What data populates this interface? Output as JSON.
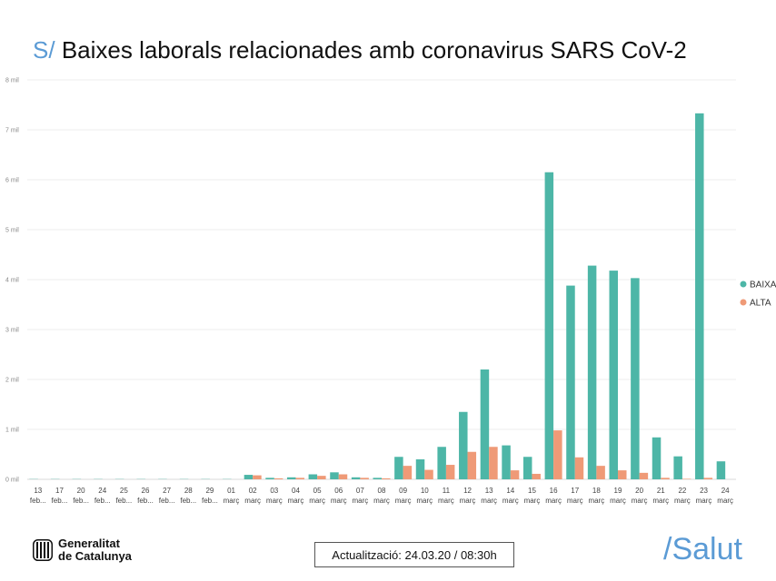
{
  "header": {
    "prefix": "S/",
    "title": "Baixes laborals relacionades amb coronavirus SARS CoV-2"
  },
  "footer": {
    "logo_line1": "Generalitat",
    "logo_line2": "de Catalunya",
    "logo_icon": "generalitat-stripes-icon",
    "update_label": "Actualització: 24.03.20 / 08:30h",
    "brand": "/Salut"
  },
  "chart_data": {
    "type": "bar",
    "title": "Baixes laborals relacionades amb coronavirus SARS CoV-2",
    "xlabel": "",
    "ylabel": "",
    "ylim": [
      0,
      8000
    ],
    "grid": true,
    "legend_position": "right",
    "y_ticks": [
      {
        "value": 0,
        "label": "0 mil"
      },
      {
        "value": 1000,
        "label": "1 mil"
      },
      {
        "value": 2000,
        "label": "2 mil"
      },
      {
        "value": 3000,
        "label": "3 mil"
      },
      {
        "value": 4000,
        "label": "4 mil"
      },
      {
        "value": 5000,
        "label": "5 mil"
      },
      {
        "value": 6000,
        "label": "6 mil"
      },
      {
        "value": 7000,
        "label": "7 mil"
      },
      {
        "value": 8000,
        "label": "8 mil"
      }
    ],
    "categories": [
      {
        "day": "13",
        "month": "feb..."
      },
      {
        "day": "17",
        "month": "feb..."
      },
      {
        "day": "20",
        "month": "feb..."
      },
      {
        "day": "24",
        "month": "feb..."
      },
      {
        "day": "25",
        "month": "feb..."
      },
      {
        "day": "26",
        "month": "feb..."
      },
      {
        "day": "27",
        "month": "feb..."
      },
      {
        "day": "28",
        "month": "feb..."
      },
      {
        "day": "29",
        "month": "feb..."
      },
      {
        "day": "01",
        "month": "març"
      },
      {
        "day": "02",
        "month": "març"
      },
      {
        "day": "03",
        "month": "març"
      },
      {
        "day": "04",
        "month": "març"
      },
      {
        "day": "05",
        "month": "març"
      },
      {
        "day": "06",
        "month": "març"
      },
      {
        "day": "07",
        "month": "març"
      },
      {
        "day": "08",
        "month": "març"
      },
      {
        "day": "09",
        "month": "març"
      },
      {
        "day": "10",
        "month": "març"
      },
      {
        "day": "11",
        "month": "març"
      },
      {
        "day": "12",
        "month": "març"
      },
      {
        "day": "13",
        "month": "març"
      },
      {
        "day": "14",
        "month": "març"
      },
      {
        "day": "15",
        "month": "març"
      },
      {
        "day": "16",
        "month": "març"
      },
      {
        "day": "17",
        "month": "març"
      },
      {
        "day": "18",
        "month": "març"
      },
      {
        "day": "19",
        "month": "març"
      },
      {
        "day": "20",
        "month": "març"
      },
      {
        "day": "21",
        "month": "març"
      },
      {
        "day": "22",
        "month": "març"
      },
      {
        "day": "23",
        "month": "març"
      },
      {
        "day": "24",
        "month": "març"
      }
    ],
    "series": [
      {
        "name": "BAIXA",
        "color": "#4db6a7",
        "values": [
          5,
          5,
          5,
          5,
          5,
          5,
          5,
          5,
          5,
          5,
          90,
          30,
          40,
          100,
          140,
          40,
          30,
          450,
          400,
          650,
          1350,
          2200,
          680,
          450,
          6150,
          3880,
          4280,
          4180,
          4030,
          840,
          460,
          7330,
          360
        ]
      },
      {
        "name": "ALTA",
        "color": "#ef9a77",
        "values": [
          0,
          0,
          0,
          0,
          0,
          0,
          0,
          0,
          0,
          0,
          80,
          20,
          30,
          70,
          100,
          30,
          20,
          270,
          190,
          290,
          550,
          650,
          180,
          110,
          980,
          440,
          270,
          180,
          130,
          30,
          10,
          30,
          0
        ]
      }
    ]
  }
}
